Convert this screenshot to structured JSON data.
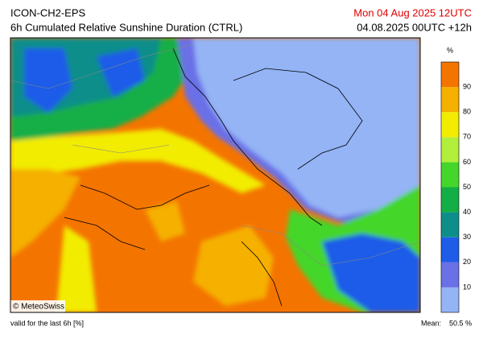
{
  "header": {
    "model": "ICON-CH2-EPS",
    "title": "6h Cumulated Relative Sunshine Duration (CTRL)",
    "valid_time": "Mon 04 Aug 2025 12UTC",
    "run": "04.08.2025 00UTC +12h"
  },
  "colorbar": {
    "unit": "%",
    "ticks": [
      10,
      20,
      30,
      40,
      50,
      60,
      70,
      80,
      90
    ],
    "colors": [
      "#94b4f6",
      "#6a70e6",
      "#1f5ce8",
      "#0e8e8a",
      "#14ae46",
      "#44d62a",
      "#b2ee3c",
      "#f2ec00",
      "#f5b000",
      "#f47400"
    ]
  },
  "credit": "© MeteoSwiss",
  "footer": {
    "note": "valid for the last 6h [%]",
    "mean_label": "Mean:",
    "mean": "50.5 %"
  }
}
